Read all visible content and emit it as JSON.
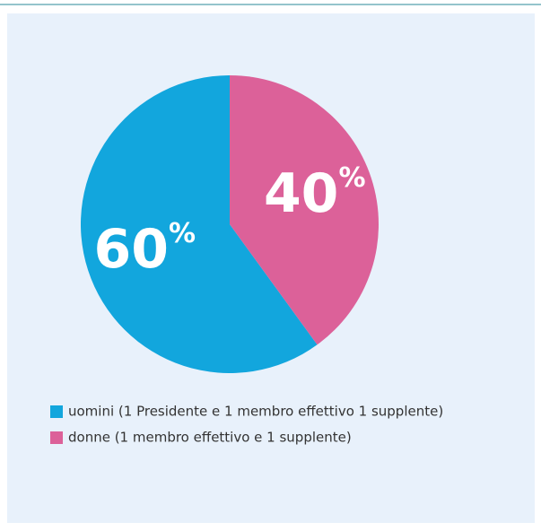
{
  "chart_data": {
    "type": "pie",
    "categories": [
      "uomini (1 Presidente e 1 membro effettivo 1 supplente)",
      "donne (1 membro effettivo e 1 supplente)"
    ],
    "values": [
      60,
      40
    ],
    "value_labels": [
      "60%",
      "40%"
    ],
    "colors": [
      "#12a6dd",
      "#dc6199"
    ]
  }
}
